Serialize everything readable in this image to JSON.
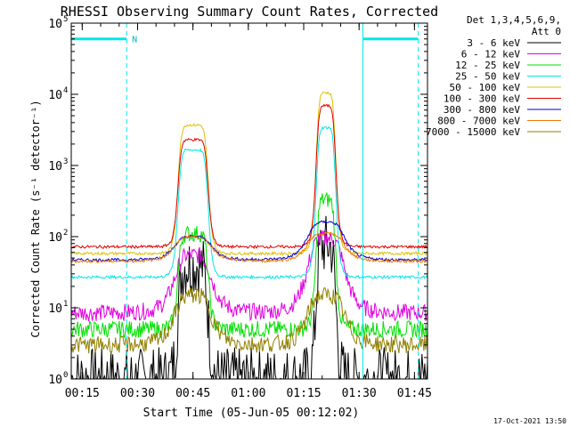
{
  "chart_data": {
    "type": "line",
    "title": "RHESSI Observing Summary Count Rates, Corrected",
    "xlabel": "Start Time (05-Jun-05 00:12:02)",
    "ylabel": "Corrected Count Rate (s⁻¹ detector⁻¹)",
    "x_unit": "minutes after 00:12:02",
    "xlim": [
      0,
      96.5
    ],
    "ylim": [
      1,
      100000
    ],
    "y_scale": "log",
    "x_ticks": [
      {
        "label": "00:15",
        "value": 2.97
      },
      {
        "label": "00:30",
        "value": 17.97
      },
      {
        "label": "00:45",
        "value": 32.97
      },
      {
        "label": "01:00",
        "value": 47.97
      },
      {
        "label": "01:15",
        "value": 62.97
      },
      {
        "label": "01:30",
        "value": 77.97
      },
      {
        "label": "01:45",
        "value": 92.97
      }
    ],
    "y_ticks": [
      {
        "label": "10",
        "exp": "0",
        "value": 1
      },
      {
        "label": "10",
        "exp": "1",
        "value": 10
      },
      {
        "label": "10",
        "exp": "2",
        "value": 100
      },
      {
        "label": "10",
        "exp": "3",
        "value": 1000
      },
      {
        "label": "10",
        "exp": "4",
        "value": 10000
      },
      {
        "label": "10",
        "exp": "5",
        "value": 100000
      }
    ],
    "legend_header": [
      "Det 1,3,4,5,6,9,",
      "Att 0"
    ],
    "flare_peaks_minutes": [
      33,
      69
    ],
    "series": [
      {
        "name": "3 - 6 keV",
        "color": "#000000",
        "baseline": 1.0,
        "peak1": 40,
        "peak2": 75
      },
      {
        "name": "6 - 12 keV",
        "color": "#e000e0",
        "baseline": 8.5,
        "peak1": 55,
        "peak2": 95
      },
      {
        "name": "12 - 25 keV",
        "color": "#00e000",
        "baseline": 5.0,
        "peak1": 110,
        "peak2": 330
      },
      {
        "name": "25 - 50 keV",
        "color": "#00e8e8",
        "baseline": 27,
        "peak1": 1650,
        "peak2": 3400
      },
      {
        "name": "50 - 100 keV",
        "color": "#e0c000",
        "baseline": 58,
        "peak1": 3700,
        "peak2": 10500
      },
      {
        "name": "100 - 300 keV",
        "color": "#e00000",
        "baseline": 72,
        "peak1": 2300,
        "peak2": 6900
      },
      {
        "name": "300 - 800 keV",
        "color": "#0000d0",
        "baseline": 47,
        "peak1": 100,
        "peak2": 160
      },
      {
        "name": "800 - 7000 keV",
        "color": "#f07800",
        "baseline": 45,
        "peak1": 100,
        "peak2": 110
      },
      {
        "name": "7000 - 15000 keV",
        "color": "#908000",
        "baseline": 3.0,
        "peak1": 15,
        "peak2": 15
      }
    ],
    "annotations": [
      {
        "type": "night_bar",
        "x_start": -1.5,
        "x_end": 15.0,
        "level": 60000,
        "label": "N"
      },
      {
        "type": "night_bar",
        "x_start": 79.0,
        "x_end": 94.0,
        "level": 60000,
        "label": ""
      },
      {
        "type": "vline_dashed",
        "x": 15.0
      },
      {
        "type": "vline_solid",
        "x": 79.0
      },
      {
        "type": "vline_dashed",
        "x": 94.0
      }
    ],
    "timestamp": "17-Oct-2021 13:50"
  }
}
